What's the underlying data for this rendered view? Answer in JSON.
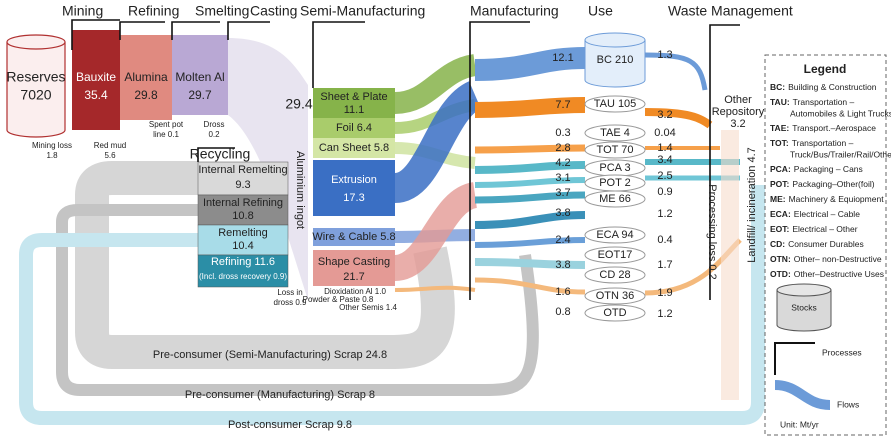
{
  "stages": [
    "Mining",
    "Refining",
    "Smelting",
    "Casting",
    "Semi-Manufacturing",
    "Manufacturing",
    "Use",
    "Waste Management"
  ],
  "primary": [
    {
      "label": "Reserves",
      "value": "7020"
    },
    {
      "label": "Bauxite",
      "value": "35.4"
    },
    {
      "label": "Alumina",
      "value": "29.8"
    },
    {
      "label": "Molten Al",
      "value": "29.7"
    }
  ],
  "casting_flow": "29.4",
  "losses": [
    {
      "lines": [
        "Mining loss",
        "1.8"
      ]
    },
    {
      "lines": [
        "Red mud",
        "5.6"
      ]
    },
    {
      "lines": [
        "Spent pot",
        "line 0.1"
      ]
    },
    {
      "lines": [
        "Dross",
        "0.2"
      ]
    }
  ],
  "ingot_label": "Aluminium ingot",
  "semis": [
    {
      "lines": [
        "Sheet & Plate",
        "11.1"
      ]
    },
    {
      "lines": [
        "Foil 6.4"
      ]
    },
    {
      "lines": [
        "Can Sheet 5.8"
      ]
    },
    {
      "lines": [
        "Extrusion",
        "17.3"
      ]
    },
    {
      "lines": [
        "Wire & Cable 5.8"
      ]
    },
    {
      "lines": [
        "Shape Casting",
        "21.7"
      ]
    }
  ],
  "minor_semis": [
    "Dioxidation Al 1.0",
    "Powder & Paste 0.8",
    "Other Semis 1.4"
  ],
  "recycling": {
    "title": "Recycling",
    "boxes": [
      {
        "lines": [
          "Internal Remelting",
          "9.3"
        ]
      },
      {
        "lines": [
          "Internal Refining",
          "10.8"
        ]
      },
      {
        "lines": [
          "Remelting",
          "10.4"
        ]
      },
      {
        "lines": [
          "Refining 11.6",
          "(Incl. dross recovery 0.9)"
        ]
      }
    ],
    "loss": [
      "Loss in",
      "dross 0.9"
    ]
  },
  "manufacturing_in": [
    "12.1",
    "7.7",
    "0.3",
    "2.8",
    "4.2",
    "3.1",
    "3.7",
    "3.8",
    "2.4",
    "3.8",
    "1.6",
    "0.8"
  ],
  "uses": [
    "BC 210",
    "TAU 105",
    "TAE 4",
    "TOT 70",
    "PCA 3",
    "POT 2",
    "ME 66",
    "ECA 94",
    "EOT17",
    "CD 28",
    "OTN 36",
    "OTD"
  ],
  "use_out": [
    "1.3",
    "3.2",
    "0.04",
    "1.4",
    "3.4",
    "2.5",
    "0.9",
    "1.2",
    "0.4",
    "1.7",
    "1.9",
    "1.2"
  ],
  "waste": {
    "repository": [
      "Other",
      "Repository",
      "3.2"
    ],
    "processing": "Processing loss 0.2",
    "landfill": "Landfill/ incineration 4.7"
  },
  "scrap": [
    "Pre-consumer (Semi-Manufacturing) Scrap 24.8",
    "Pre-consumer (Manufacturing) Scrap 8",
    "Post-consumer Scrap 9.8"
  ],
  "legend": {
    "title": "Legend",
    "entries": [
      {
        "abbr": "BC:",
        "lines": [
          "Building & Construction"
        ]
      },
      {
        "abbr": "TAU:",
        "lines": [
          "Transportation –",
          "Automobiles & Light Trucks"
        ]
      },
      {
        "abbr": "TAE:",
        "lines": [
          "Transport.–Aerospace"
        ]
      },
      {
        "abbr": "TOT:",
        "lines": [
          "Transportation –",
          "Truck/Bus/Trailer/Rail/Other"
        ]
      },
      {
        "abbr": "PCA:",
        "lines": [
          "Packaging – Cans"
        ]
      },
      {
        "abbr": "POT:",
        "lines": [
          "Packaging–Other(foil)"
        ]
      },
      {
        "abbr": "ME:",
        "lines": [
          "Machinery & Equiopment"
        ]
      },
      {
        "abbr": "ECA:",
        "lines": [
          "Electrical – Cable"
        ]
      },
      {
        "abbr": "EOT:",
        "lines": [
          "Electrical – Other"
        ]
      },
      {
        "abbr": "CD:",
        "lines": [
          "Consumer Durables"
        ]
      },
      {
        "abbr": "OTN:",
        "lines": [
          "Other– non-Destructive"
        ]
      },
      {
        "abbr": "OTD:",
        "lines": [
          "Other–Destructive Uses"
        ]
      }
    ],
    "stocks": "Stocks",
    "processes": "Processes",
    "flows": "Flows",
    "unit": "Unit: Mt/yr"
  }
}
